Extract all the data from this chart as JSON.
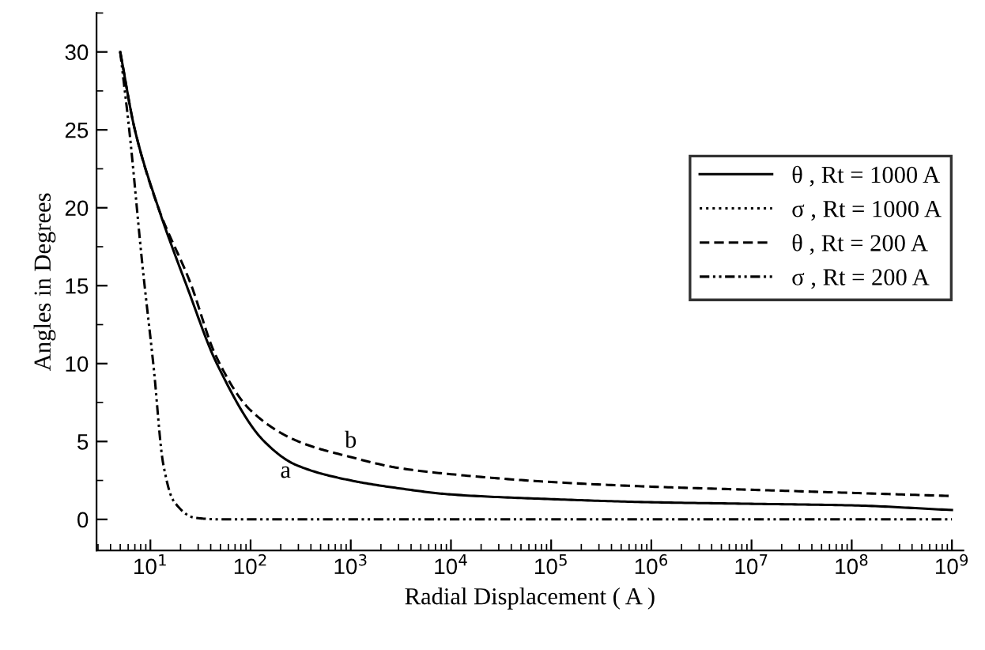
{
  "chart_data": {
    "type": "line",
    "xlabel": "Radial Displacement ( A )",
    "ylabel": "Angles in Degrees",
    "log": "x",
    "xlim": [
      2.9,
      1300000000.0
    ],
    "ylim": [
      -2,
      32.5
    ],
    "xticks": [
      {
        "value": 10,
        "label": "10$^{1}$"
      },
      {
        "value": 100,
        "label": "10$^{2}$"
      },
      {
        "value": 1000,
        "label": "10$^{3}$"
      },
      {
        "value": 10000,
        "label": "10$^{4}$"
      },
      {
        "value": 100000,
        "label": "10$^{5}$"
      },
      {
        "value": 1000000,
        "label": "10$^{6}$"
      },
      {
        "value": 10000000,
        "label": "10$^{7}$"
      },
      {
        "value": 100000000,
        "label": "10$^{8}$"
      },
      {
        "value": 1000000000,
        "label": "10$^{9}$"
      }
    ],
    "yticks": [
      0,
      5,
      10,
      15,
      20,
      25,
      30
    ],
    "grid": false,
    "legend": "right",
    "marker": "none",
    "series": [
      {
        "name": "θ , Rt = 1000 A",
        "color": "#000000",
        "line_style": "solid",
        "x": [
          5,
          7,
          12,
          23,
          46,
          137,
          283,
          1000,
          3000,
          10000,
          100000,
          1000000,
          10000000,
          100000000,
          1000000000
        ],
        "values": [
          30,
          25,
          20,
          15,
          10,
          5,
          3.5,
          2.5,
          2.0,
          1.6,
          1.3,
          1.1,
          1.0,
          0.9,
          0.6
        ]
      },
      {
        "name": "σ , Rt = 1000 A",
        "color": "#000000",
        "line_style": "dotted"
      },
      {
        "name": "θ , Rt = 200 A",
        "color": "#000000",
        "line_style": "dashed",
        "x": [
          5,
          7,
          12,
          25,
          45,
          100,
          300,
          1000,
          3000,
          10000,
          100000,
          1000000,
          10000000,
          100000000,
          1000000000
        ],
        "values": [
          30,
          25,
          20,
          15.2,
          10.5,
          7.0,
          5.0,
          4.0,
          3.3,
          2.9,
          2.4,
          2.1,
          1.9,
          1.7,
          1.5
        ]
      },
      {
        "name": "σ , Rt = 200 A",
        "color": "#000000",
        "line_style": "dashdot",
        "x": [
          5,
          6.2,
          8.3,
          10.8,
          13.4,
          17,
          28,
          50,
          100,
          1000,
          1000000000
        ],
        "values": [
          30,
          24.8,
          16.4,
          9.7,
          3.6,
          1.2,
          0.1,
          0,
          0,
          0,
          0
        ]
      }
    ],
    "annotations": [
      {
        "text": "a",
        "x": 165,
        "y": 4.6
      },
      {
        "text": "b",
        "x": 1000,
        "y": 4.0
      }
    ]
  }
}
